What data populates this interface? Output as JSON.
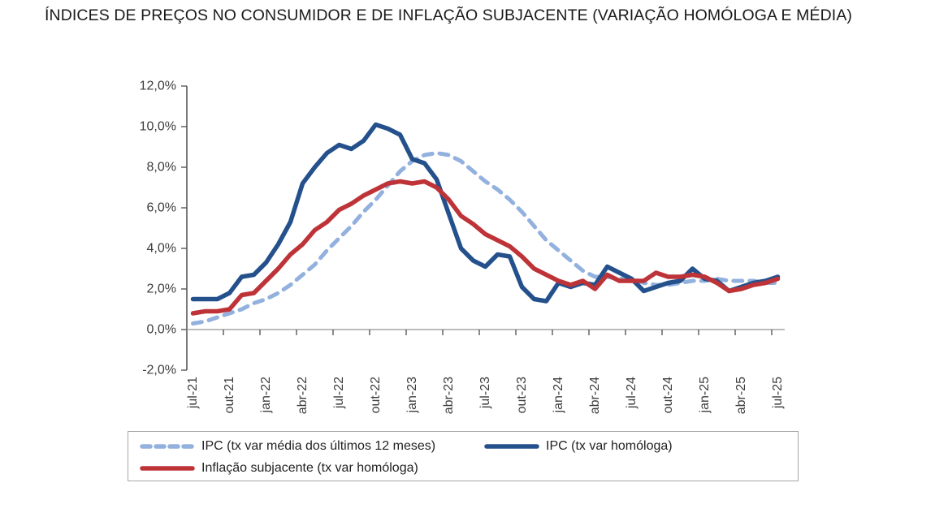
{
  "title": "ÍNDICES DE PREÇOS NO CONSUMIDOR E DE INFLAÇÃO SUBJACENTE (VARIAÇÃO HOMÓLOGA E MÉDIA)",
  "colors": {
    "ipc_media_dashed": "#93B1DE",
    "ipc_homologa": "#24508C",
    "inflacao_subjacente": "#BE3338",
    "y_axis_line": "#595959",
    "x_axis_line": "#a6a6a6",
    "tick_marks": "#595959",
    "axis_label_text": "#3d3d3d",
    "legend_border": "#a6a6a6",
    "title_text": "#1a1a1a"
  },
  "legend": {
    "items": [
      {
        "label": "IPC (tx var média dos últimos 12 meses)",
        "style": "dashed",
        "color": "#93B1DE"
      },
      {
        "label": "IPC (tx var homóloga)",
        "style": "solid",
        "color": "#24508C"
      },
      {
        "label": "Inflação subjacente (tx var homóloga)",
        "style": "solid",
        "color": "#BE3338"
      }
    ]
  },
  "chart_data": {
    "type": "line",
    "title": "ÍNDICES DE PREÇOS NO CONSUMIDOR E DE INFLAÇÃO SUBJACENTE (VARIAÇÃO HOMÓLOGA E MÉDIA)",
    "xlabel": "",
    "ylabel": "",
    "ylim": [
      -2,
      12
    ],
    "grid": false,
    "legend_position": "bottom-box",
    "y_tick_values": [
      12,
      10,
      8,
      6,
      4,
      2,
      0,
      -2
    ],
    "y_tick_labels": [
      "12,0%",
      "10,0%",
      "8,0%",
      "6,0%",
      "4,0%",
      "2,0%",
      "0,0%",
      "-2,0%"
    ],
    "x_tick_step": 3,
    "x_tick_labels_shown": [
      "jul-21",
      "out-21",
      "jan-22",
      "abr-22",
      "jul-22",
      "out-22",
      "jan-23",
      "abr-23",
      "jul-23",
      "out-23",
      "jan-24",
      "abr-24",
      "jul-24",
      "out-24",
      "jan-25",
      "abr-25",
      "jul-25"
    ],
    "categories": [
      "jul-21",
      "ago-21",
      "set-21",
      "out-21",
      "nov-21",
      "dez-21",
      "jan-22",
      "fev-22",
      "mar-22",
      "abr-22",
      "mai-22",
      "jun-22",
      "jul-22",
      "ago-22",
      "set-22",
      "out-22",
      "nov-22",
      "dez-22",
      "jan-23",
      "fev-23",
      "mar-23",
      "abr-23",
      "mai-23",
      "jun-23",
      "jul-23",
      "ago-23",
      "set-23",
      "out-23",
      "nov-23",
      "dez-23",
      "jan-24",
      "fev-24",
      "mar-24",
      "abr-24",
      "mai-24",
      "jun-24",
      "jul-24",
      "ago-24",
      "set-24",
      "out-24",
      "nov-24",
      "dez-24",
      "jan-25",
      "fev-25",
      "mar-25",
      "abr-25",
      "mai-25",
      "jun-25",
      "jul-25"
    ],
    "series": [
      {
        "name": "IPC (tx var média dos últimos 12 meses)",
        "style": "dashed",
        "color": "#93B1DE",
        "values": [
          0.3,
          0.4,
          0.6,
          0.8,
          1.0,
          1.3,
          1.5,
          1.8,
          2.2,
          2.7,
          3.2,
          3.9,
          4.5,
          5.1,
          5.8,
          6.4,
          7.1,
          7.8,
          8.3,
          8.6,
          8.7,
          8.6,
          8.3,
          7.8,
          7.3,
          6.9,
          6.4,
          5.8,
          5.1,
          4.4,
          3.9,
          3.4,
          2.9,
          2.6,
          2.6,
          2.5,
          2.5,
          2.3,
          2.2,
          2.2,
          2.3,
          2.4,
          2.4,
          2.5,
          2.4,
          2.4,
          2.4,
          2.3,
          2.3
        ]
      },
      {
        "name": "IPC (tx var homóloga)",
        "style": "solid",
        "color": "#24508C",
        "values": [
          1.5,
          1.5,
          1.5,
          1.8,
          2.6,
          2.7,
          3.3,
          4.2,
          5.3,
          7.2,
          8.0,
          8.7,
          9.1,
          8.9,
          9.3,
          10.1,
          9.9,
          9.6,
          8.4,
          8.2,
          7.4,
          5.7,
          4.0,
          3.4,
          3.1,
          3.7,
          3.6,
          2.1,
          1.5,
          1.4,
          2.3,
          2.1,
          2.3,
          2.2,
          3.1,
          2.8,
          2.5,
          1.9,
          2.1,
          2.3,
          2.4,
          3.0,
          2.5,
          2.4,
          1.9,
          2.1,
          2.3,
          2.4,
          2.6
        ]
      },
      {
        "name": "Inflação subjacente (tx var homóloga)",
        "style": "solid",
        "color": "#BE3338",
        "values": [
          0.8,
          0.9,
          0.9,
          1.0,
          1.7,
          1.8,
          2.4,
          3.0,
          3.7,
          4.2,
          4.9,
          5.3,
          5.9,
          6.2,
          6.6,
          6.9,
          7.2,
          7.3,
          7.2,
          7.3,
          7.0,
          6.4,
          5.6,
          5.2,
          4.7,
          4.4,
          4.1,
          3.6,
          3.0,
          2.7,
          2.4,
          2.2,
          2.4,
          2.0,
          2.7,
          2.4,
          2.4,
          2.4,
          2.8,
          2.6,
          2.6,
          2.7,
          2.6,
          2.3,
          1.9,
          2.0,
          2.2,
          2.3,
          2.5
        ]
      }
    ]
  }
}
